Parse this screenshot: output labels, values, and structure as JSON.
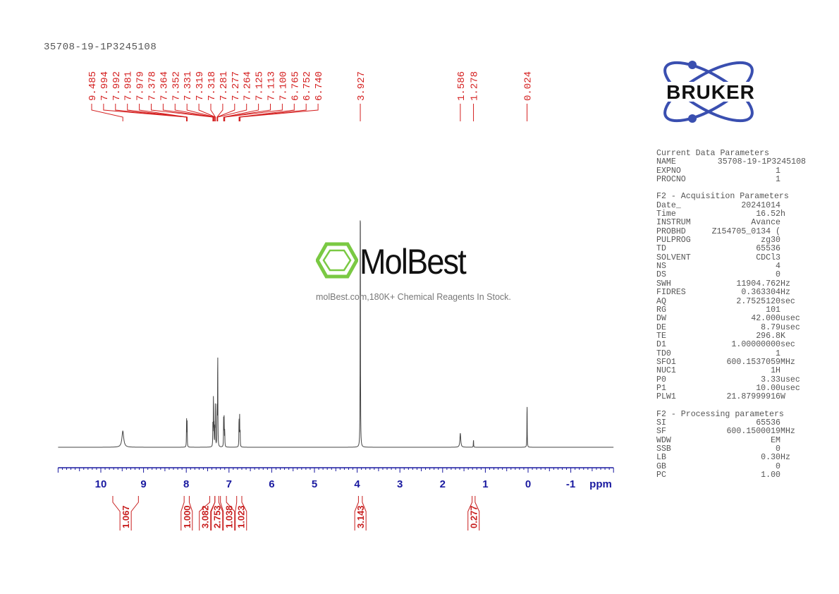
{
  "header": {
    "title": "35708-19-1P3245108"
  },
  "logo": {
    "text": "BRUKER",
    "ring_color": "#3a4fb0"
  },
  "watermark": {
    "name": "MolBest",
    "subtitle": "molBest.com,180K+ Chemical Reagents In Stock.",
    "color": "#7ac943"
  },
  "parameters": {
    "sections": [
      {
        "heading": "Current Data Parameters",
        "rows": [
          [
            "NAME",
            "35708-19-1P3245108",
            ""
          ],
          [
            "EXPNO",
            "1",
            ""
          ],
          [
            "PROCNO",
            "1",
            ""
          ]
        ]
      },
      {
        "heading": "F2 - Acquisition Parameters",
        "rows": [
          [
            "Date_",
            "20241014",
            ""
          ],
          [
            "Time",
            "16.52",
            "h"
          ],
          [
            "INSTRUM",
            "Avance",
            ""
          ],
          [
            "PROBHD",
            "Z154705_0134 (",
            ""
          ],
          [
            "PULPROG",
            "zg30",
            ""
          ],
          [
            "TD",
            "65536",
            ""
          ],
          [
            "SOLVENT",
            "CDCl3",
            ""
          ],
          [
            "NS",
            "4",
            ""
          ],
          [
            "DS",
            "0",
            ""
          ],
          [
            "SWH",
            "11904.762",
            "Hz"
          ],
          [
            "FIDRES",
            "0.363304",
            "Hz"
          ],
          [
            "AQ",
            "2.7525120",
            "sec"
          ],
          [
            "RG",
            "101",
            ""
          ],
          [
            "DW",
            "42.000",
            "usec"
          ],
          [
            "DE",
            "8.79",
            "usec"
          ],
          [
            "TE",
            "296.8",
            "K"
          ],
          [
            "D1",
            "1.00000000",
            "sec"
          ],
          [
            "TD0",
            "1",
            ""
          ],
          [
            "SFO1",
            "600.1537059",
            "MHz"
          ],
          [
            "NUC1",
            "1H",
            ""
          ],
          [
            "P0",
            "3.33",
            "usec"
          ],
          [
            "P1",
            "10.00",
            "usec"
          ],
          [
            "PLW1",
            "21.87999916",
            "W"
          ]
        ]
      },
      {
        "heading": "F2 - Processing parameters",
        "rows": [
          [
            "SI",
            "65536",
            ""
          ],
          [
            "SF",
            "600.1500019",
            "MHz"
          ],
          [
            "WDW",
            "EM",
            ""
          ],
          [
            "SSB",
            "0",
            ""
          ],
          [
            "LB",
            "0.30",
            "Hz"
          ],
          [
            "GB",
            "0",
            ""
          ],
          [
            "PC",
            "1.00",
            ""
          ]
        ]
      }
    ]
  },
  "chart_data": {
    "type": "line",
    "title": "35708-19-1P3245108",
    "xlabel": "ppm",
    "xlim": [
      11,
      -2
    ],
    "x_reversed": true,
    "x_ticks": [
      "10",
      "9",
      "8",
      "7",
      "6",
      "5",
      "4",
      "3",
      "2",
      "1",
      "0",
      "-1"
    ],
    "grid": false,
    "colors": {
      "spectrum": "#444444",
      "peak_labels": "#d42020",
      "axis": "#1a1aa0",
      "integrals": "#c81e1e"
    },
    "peak_labels": [
      "9.485",
      "7.994",
      "7.992",
      "7.981",
      "7.979",
      "7.378",
      "7.364",
      "7.352",
      "7.331",
      "7.319",
      "7.318",
      "7.281",
      "7.277",
      "7.264",
      "7.125",
      "7.113",
      "7.100",
      "6.765",
      "6.752",
      "6.740",
      "3.927",
      "1.586",
      "1.278",
      "0.024"
    ],
    "peaks": [
      {
        "ppm": 9.485,
        "intensity": 23
      },
      {
        "ppm": 7.994,
        "intensity": 22
      },
      {
        "ppm": 7.992,
        "intensity": 20
      },
      {
        "ppm": 7.981,
        "intensity": 20
      },
      {
        "ppm": 7.979,
        "intensity": 18
      },
      {
        "ppm": 7.378,
        "intensity": 30
      },
      {
        "ppm": 7.364,
        "intensity": 80
      },
      {
        "ppm": 7.352,
        "intensity": 30
      },
      {
        "ppm": 7.331,
        "intensity": 30
      },
      {
        "ppm": 7.319,
        "intensity": 35
      },
      {
        "ppm": 7.318,
        "intensity": 35
      },
      {
        "ppm": 7.281,
        "intensity": 35
      },
      {
        "ppm": 7.277,
        "intensity": 35
      },
      {
        "ppm": 7.264,
        "intensity": 150
      },
      {
        "ppm": 7.125,
        "intensity": 45
      },
      {
        "ppm": 7.113,
        "intensity": 42
      },
      {
        "ppm": 7.1,
        "intensity": 25
      },
      {
        "ppm": 6.765,
        "intensity": 45
      },
      {
        "ppm": 6.752,
        "intensity": 47
      },
      {
        "ppm": 6.74,
        "intensity": 25
      },
      {
        "ppm": 3.927,
        "intensity": 431
      },
      {
        "ppm": 1.586,
        "intensity": 20
      },
      {
        "ppm": 1.278,
        "intensity": 12
      },
      {
        "ppm": 0.024,
        "intensity": 71
      }
    ],
    "integrals": [
      {
        "value": "1.067",
        "from": 9.72,
        "to": 9.12
      },
      {
        "value": "1.000",
        "from": 8.05,
        "to": 7.93
      },
      {
        "value": "3.082",
        "from": 7.45,
        "to": 7.33
      },
      {
        "value": "2.753",
        "from": 7.33,
        "to": 7.24
      },
      {
        "value": "1.038",
        "from": 7.2,
        "to": 7.06
      },
      {
        "value": "1.023",
        "from": 6.82,
        "to": 6.7
      },
      {
        "value": "3.143",
        "from": 3.97,
        "to": 3.88
      },
      {
        "value": "0.277",
        "from": 1.31,
        "to": 1.24
      }
    ]
  }
}
